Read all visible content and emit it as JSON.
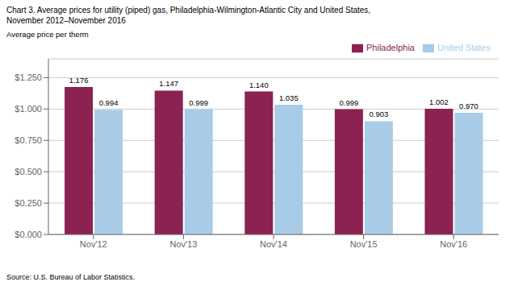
{
  "chart_data": {
    "type": "bar",
    "title": "Chart 3. Average prices for utility (piped) gas, Philadelphia-Wilmington-Atlantic City and United States,",
    "subtitle": "November 2012–November 2016",
    "ylabel": "Average price per therm",
    "annotations": [
      "Source: U.S. Bureau of Labor Statistics."
    ],
    "categories": [
      "Nov'12",
      "Nov'13",
      "Nov'14",
      "Nov'15",
      "Nov'16"
    ],
    "series": [
      {
        "name": "Philadelphia",
        "color": "#8B2252",
        "values": [
          1.176,
          1.147,
          1.14,
          0.999,
          1.002
        ],
        "value_labels": [
          "1.176",
          "1.147",
          "1.140",
          "0.999",
          "1.002"
        ]
      },
      {
        "name": "United States",
        "color": "#A8CCE8",
        "values": [
          0.994,
          0.999,
          1.035,
          0.903,
          0.97
        ],
        "value_labels": [
          "0.994",
          "0.999",
          "1.035",
          "0.903",
          "0.970"
        ]
      }
    ],
    "ylim": [
      0,
      1.4
    ],
    "yticks": [
      {
        "value": 0.0,
        "label": "$0.000"
      },
      {
        "value": 0.25,
        "label": "$0.250"
      },
      {
        "value": 0.5,
        "label": "$0.500"
      },
      {
        "value": 0.75,
        "label": "$0.750"
      },
      {
        "value": 1.0,
        "label": "$1.000"
      },
      {
        "value": 1.25,
        "label": "$1.250"
      }
    ],
    "grid": true,
    "legend": "upper right",
    "data_labels": true
  }
}
